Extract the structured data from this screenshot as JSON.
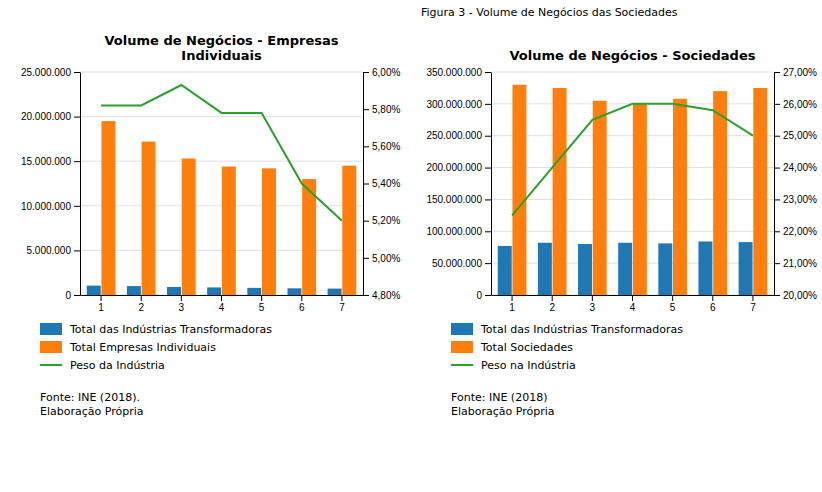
{
  "chart_data": [
    {
      "type": "bar",
      "title": "Volume de Negócios - Empresas\nIndividuais",
      "categories": [
        1,
        2,
        3,
        4,
        5,
        6,
        7
      ],
      "series": [
        {
          "name": "Total das Indústrias Transformadoras",
          "type": "bar",
          "values": [
            1050000,
            1000000,
            900000,
            850000,
            800000,
            750000,
            720000
          ]
        },
        {
          "name": "Total Empresas Individuais",
          "type": "bar",
          "values": [
            19500000,
            17200000,
            15300000,
            14400000,
            14200000,
            13000000,
            14500000
          ]
        },
        {
          "name": "Peso da Indústria",
          "type": "line",
          "axis": "y2",
          "values": [
            0.0582,
            0.0582,
            0.0593,
            0.0578,
            0.0578,
            0.054,
            0.052
          ]
        }
      ],
      "ylim": [
        0,
        25000000
      ],
      "yticks": [
        0,
        {
          "value": 5000000,
          "label": "5.000.000"
        },
        {
          "value": 10000000,
          "label": "10.000.000"
        },
        {
          "value": 15000000,
          "label": "15.000.000"
        },
        {
          "value": 20000000,
          "label": "20.000.000"
        },
        {
          "value": 25000000,
          "label": "25.000.000"
        }
      ],
      "y2lim": [
        0.048,
        0.06
      ],
      "y2ticks": [
        {
          "value": 0.048,
          "label": "4,80%"
        },
        {
          "value": 0.05,
          "label": "5,00%"
        },
        {
          "value": 0.052,
          "label": "5,20%"
        },
        {
          "value": 0.054,
          "label": "5,40%"
        },
        {
          "value": 0.056,
          "label": "5,60%"
        },
        {
          "value": 0.058,
          "label": "5,80%"
        },
        {
          "value": 0.06,
          "label": "6,00%"
        }
      ],
      "grid": true,
      "legend": "bottom",
      "annotations": [
        "Fonte: INE (2018).\nElaboração Própria"
      ]
    },
    {
      "type": "bar",
      "title": "Volume de Negócios - Sociedades",
      "subtitle": "Figura 3 - Volume de Negócios das Sociedades",
      "categories": [
        1,
        2,
        3,
        4,
        5,
        6,
        7
      ],
      "series": [
        {
          "name": "Total das Indústrias Transformadoras",
          "type": "bar",
          "values": [
            77000000,
            82000000,
            80000000,
            82000000,
            81000000,
            84000000,
            83000000
          ]
        },
        {
          "name": "Total Sociedades",
          "type": "bar",
          "values": [
            330000000,
            325000000,
            305000000,
            300000000,
            308000000,
            320000000,
            325000000
          ]
        },
        {
          "name": "Peso na Indústria",
          "type": "line",
          "axis": "y2",
          "values": [
            0.225,
            0.24,
            0.255,
            0.26,
            0.26,
            0.258,
            0.25
          ]
        }
      ],
      "ylim": [
        0,
        350000000
      ],
      "yticks": [
        0,
        {
          "value": 50000000,
          "label": "50.000.000"
        },
        {
          "value": 100000000,
          "label": "100.000.000"
        },
        {
          "value": 150000000,
          "label": "150.000.000"
        },
        {
          "value": 200000000,
          "label": "200.000.000"
        },
        {
          "value": 250000000,
          "label": "250.000.000"
        },
        {
          "value": 300000000,
          "label": "300.000.000"
        },
        {
          "value": 350000000,
          "label": "350.000.000"
        }
      ],
      "y2lim": [
        0.2,
        0.27
      ],
      "y2ticks": [
        {
          "value": 0.2,
          "label": "20,00%"
        },
        {
          "value": 0.21,
          "label": "21,00%"
        },
        {
          "value": 0.22,
          "label": "22,00%"
        },
        {
          "value": 0.23,
          "label": "23,00%"
        },
        {
          "value": 0.24,
          "label": "24,00%"
        },
        {
          "value": 0.25,
          "label": "25,00%"
        },
        {
          "value": 0.26,
          "label": "26,00%"
        },
        {
          "value": 0.27,
          "label": "27,00%"
        }
      ],
      "grid": true,
      "legend": "bottom",
      "annotations": [
        "Fonte: INE (2018)\nElaboração Própria"
      ]
    }
  ]
}
